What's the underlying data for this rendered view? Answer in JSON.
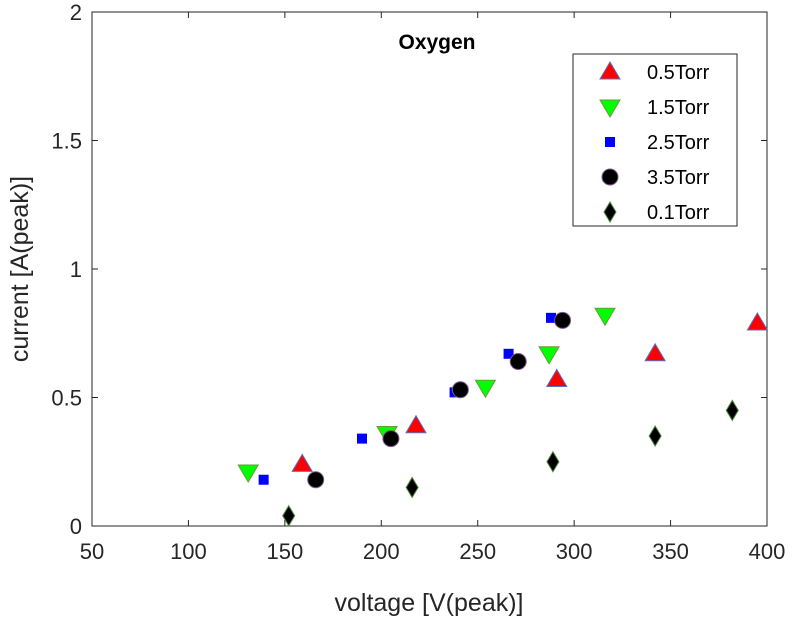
{
  "chart_data": {
    "type": "scatter",
    "title": "Oxygen",
    "xlabel": "voltage [V(peak)]",
    "ylabel": "current [A(peak)]",
    "xlim": [
      50,
      400
    ],
    "ylim": [
      0,
      2
    ],
    "xticks": [
      50,
      100,
      150,
      200,
      250,
      300,
      350,
      400
    ],
    "yticks": [
      0,
      0.5,
      1,
      1.5,
      2
    ],
    "ytick_labels": [
      "0",
      "0.5",
      "1",
      "1.5",
      "2"
    ],
    "grid": false,
    "legend_position": "top-right",
    "series": [
      {
        "name": "0.5Torr",
        "marker": "triangle-up",
        "color": "#ff0000",
        "x": [
          159,
          218,
          291,
          342,
          395
        ],
        "y": [
          0.24,
          0.39,
          0.57,
          0.67,
          0.79
        ]
      },
      {
        "name": "1.5Torr",
        "marker": "triangle-down",
        "color": "#00ff00",
        "x": [
          131,
          203,
          254,
          287,
          316
        ],
        "y": [
          0.21,
          0.36,
          0.54,
          0.67,
          0.82
        ]
      },
      {
        "name": "2.5Torr",
        "marker": "square",
        "color": "#0000ff",
        "x": [
          139,
          190,
          238,
          266,
          288
        ],
        "y": [
          0.18,
          0.34,
          0.52,
          0.67,
          0.81
        ]
      },
      {
        "name": "3.5Torr",
        "marker": "circle",
        "color": "#000000",
        "x": [
          166,
          205,
          241,
          271,
          294
        ],
        "y": [
          0.18,
          0.34,
          0.53,
          0.64,
          0.8
        ]
      },
      {
        "name": "0.1Torr",
        "marker": "diamond",
        "color": "#000000",
        "x": [
          152,
          216,
          289,
          342,
          382
        ],
        "y": [
          0.04,
          0.15,
          0.25,
          0.35,
          0.45
        ]
      }
    ]
  }
}
